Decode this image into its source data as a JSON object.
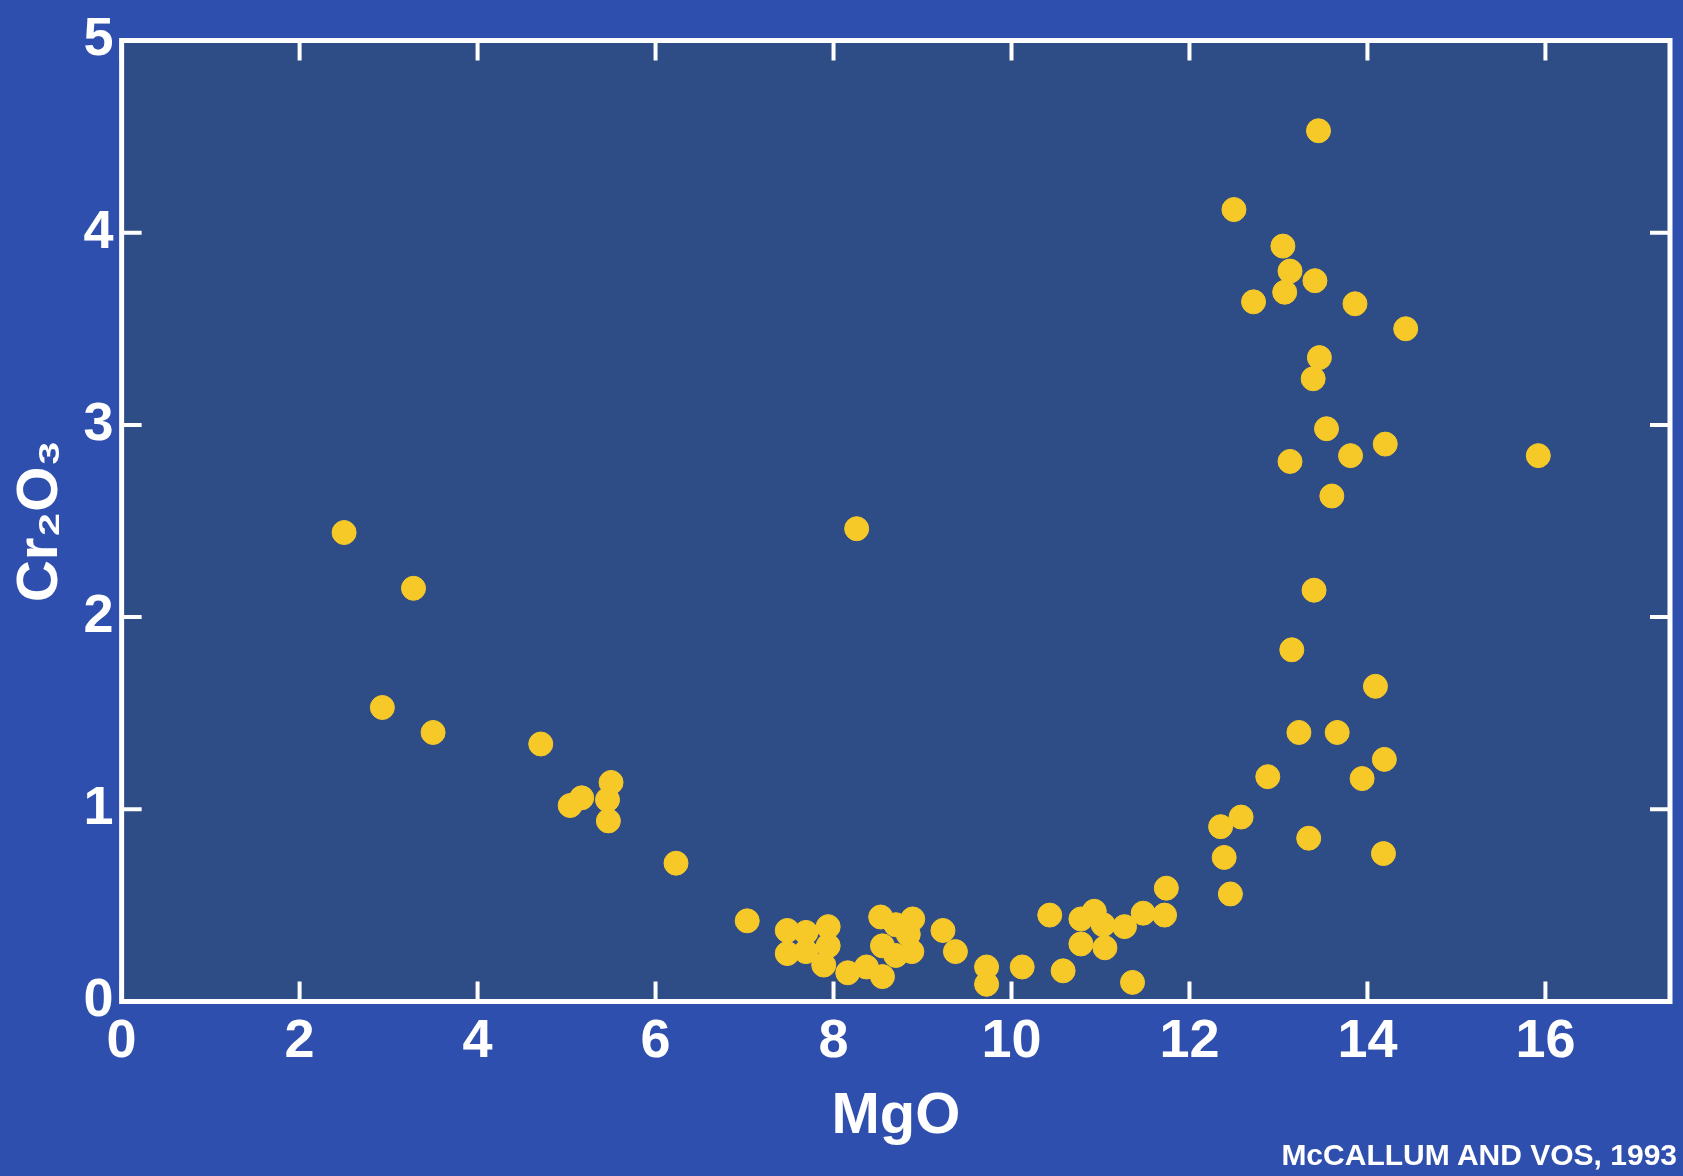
{
  "chart_data": {
    "type": "scatter",
    "xlabel": "MgO",
    "ylabel": "Cr₂O₃",
    "annotations": [
      "McCALLUM AND VOS, 1993"
    ],
    "x": [
      2.5,
      3.28,
      2.93,
      3.5,
      4.71,
      5.04,
      5.17,
      5.5,
      5.46,
      5.47,
      6.23,
      7.03,
      8.26,
      7.48,
      7.48,
      7.69,
      7.69,
      7.94,
      7.94,
      7.89,
      8.16,
      8.37,
      8.53,
      8.55,
      8.55,
      8.7,
      8.7,
      8.89,
      8.88,
      8.84,
      9.23,
      9.37,
      9.72,
      9.72,
      10.12,
      10.43,
      10.58,
      10.78,
      10.78,
      10.93,
      11.03,
      11.05,
      11.27,
      11.36,
      11.48,
      11.72,
      11.74,
      12.35,
      12.39,
      12.46,
      12.58,
      12.5,
      12.72,
      12.88,
      13.05,
      13.13,
      13.07,
      13.41,
      13.45,
      13.86,
      14.43,
      13.46,
      13.39,
      13.54,
      13.13,
      13.81,
      14.2,
      13.6,
      15.92,
      13.4,
      13.15,
      14.09,
      13.23,
      13.66,
      14.19,
      13.94,
      13.34,
      14.18
    ],
    "values": [
      2.44,
      2.15,
      1.53,
      1.4,
      1.34,
      1.02,
      1.06,
      1.14,
      1.05,
      0.94,
      0.72,
      0.42,
      2.46,
      0.37,
      0.25,
      0.36,
      0.26,
      0.39,
      0.29,
      0.19,
      0.15,
      0.18,
      0.44,
      0.29,
      0.13,
      0.4,
      0.24,
      0.43,
      0.26,
      0.35,
      0.37,
      0.26,
      0.18,
      0.09,
      0.18,
      0.45,
      0.16,
      0.43,
      0.3,
      0.47,
      0.4,
      0.28,
      0.39,
      0.1,
      0.46,
      0.45,
      0.59,
      0.91,
      0.75,
      0.56,
      0.96,
      4.12,
      3.64,
      1.17,
      3.93,
      3.8,
      3.69,
      3.75,
      4.53,
      3.63,
      3.5,
      3.35,
      3.24,
      2.98,
      2.81,
      2.84,
      2.9,
      2.63,
      2.84,
      2.14,
      1.83,
      1.64,
      1.4,
      1.4,
      1.26,
      1.16,
      0.85,
      0.77
    ],
    "color": "#f7c928",
    "marker": "circle",
    "xlim": [
      0,
      17.4
    ],
    "xticks": [
      0,
      2,
      4,
      6,
      8,
      10,
      12,
      14,
      16
    ],
    "ylim": [
      0,
      5
    ],
    "yticks": [
      0,
      1,
      2,
      3,
      4,
      5
    ],
    "grid": false,
    "legend": false
  }
}
